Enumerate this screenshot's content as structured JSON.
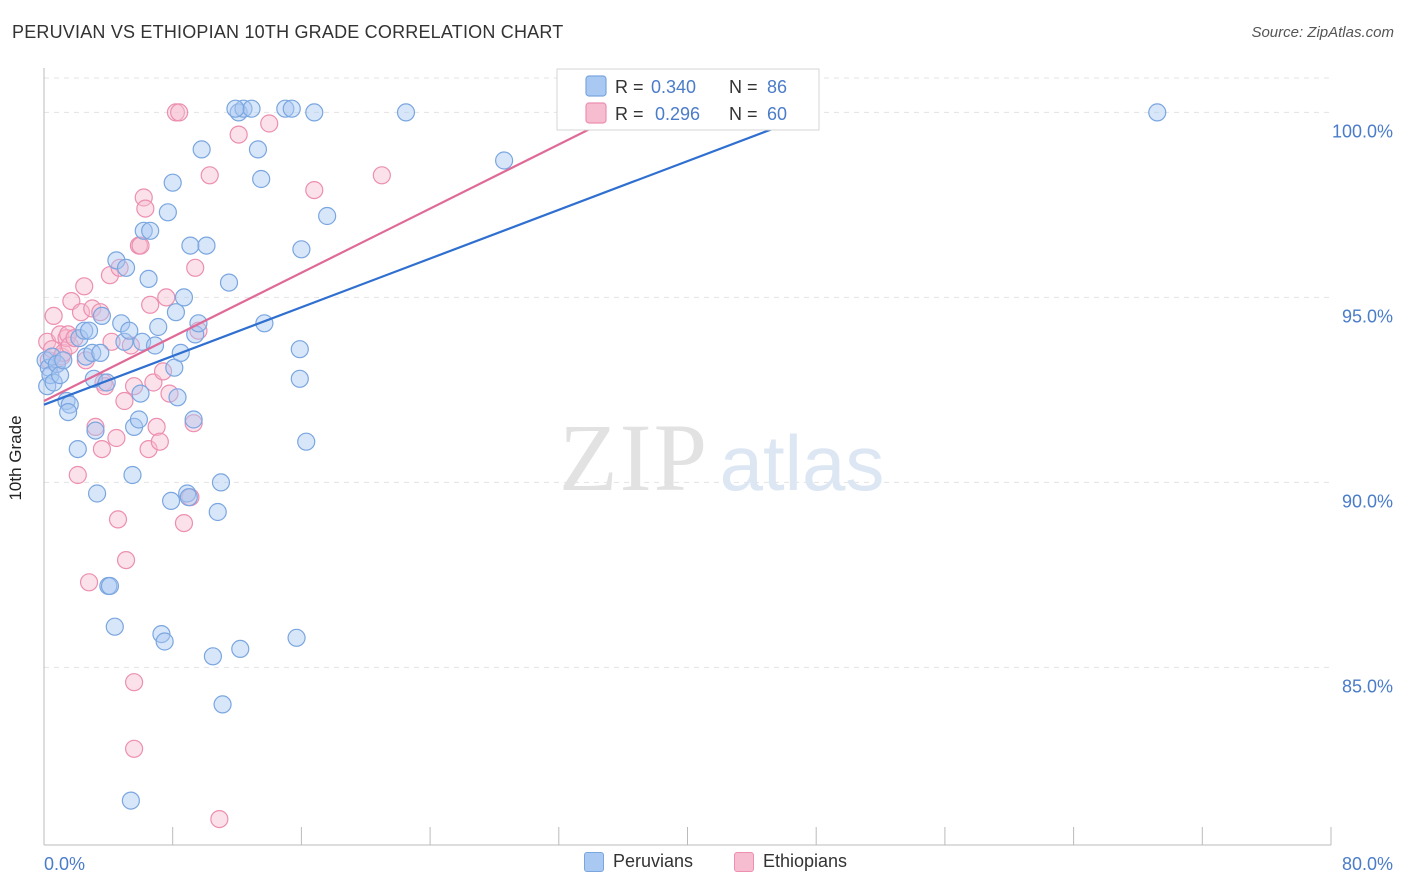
{
  "title": "PERUVIAN VS ETHIOPIAN 10TH GRADE CORRELATION CHART",
  "source": "Source: ZipAtlas.com",
  "watermark": {
    "zip": "ZIP",
    "atlas": "atlas"
  },
  "colors": {
    "peruvian_fill": "#a9c8f2",
    "peruvian_stroke": "#7aa6e0",
    "peruvian_line": "#2f6fd0",
    "ethiopian_fill": "#f6bcd0",
    "ethiopian_stroke": "#ec8fb0",
    "ethiopian_line": "#e06a97",
    "value_blue": "#4a7cc9",
    "grid": "#e3e3e3"
  },
  "legend_top": [
    {
      "r_label": "R =",
      "r_value": "0.340",
      "n_label": "N =",
      "n_value": "86"
    },
    {
      "r_label": "R =",
      "r_value": "0.296",
      "n_label": "N =",
      "n_value": "60"
    }
  ],
  "legend_bottom": [
    "Peruvians",
    "Ethiopians"
  ],
  "chart_data": {
    "type": "scatter",
    "title": "PERUVIAN VS ETHIOPIAN 10TH GRADE CORRELATION CHART",
    "xlabel": "",
    "ylabel": "10th Grade",
    "xlim": [
      0,
      80
    ],
    "ylim": [
      80.2,
      101.2
    ],
    "x_tick_labels": [
      "0.0%",
      "80.0%"
    ],
    "y_ticks": [
      85,
      90,
      95,
      100
    ],
    "y_tick_labels": [
      "85.0%",
      "90.0%",
      "95.0%",
      "100.0%"
    ],
    "grid": true,
    "legend_position": "top-center",
    "series": [
      {
        "name": "Peruvians",
        "r": 0.34,
        "n": 86,
        "trend": {
          "x": [
            0,
            48
          ],
          "y": [
            92.1,
            100.0
          ]
        },
        "points": [
          [
            0.1,
            93.3
          ],
          [
            0.2,
            92.6
          ],
          [
            0.3,
            93.1
          ],
          [
            0.4,
            92.9
          ],
          [
            0.5,
            93.4
          ],
          [
            0.6,
            92.7
          ],
          [
            0.8,
            93.2
          ],
          [
            1.0,
            92.9
          ],
          [
            1.2,
            93.3
          ],
          [
            1.4,
            92.2
          ],
          [
            1.6,
            92.1
          ],
          [
            1.5,
            91.9
          ],
          [
            2.1,
            90.9
          ],
          [
            2.2,
            93.9
          ],
          [
            2.5,
            94.1
          ],
          [
            2.6,
            93.4
          ],
          [
            2.8,
            94.1
          ],
          [
            3.0,
            93.5
          ],
          [
            3.1,
            92.8
          ],
          [
            3.2,
            91.4
          ],
          [
            3.3,
            89.7
          ],
          [
            3.5,
            93.5
          ],
          [
            3.6,
            94.5
          ],
          [
            3.9,
            92.7
          ],
          [
            4.0,
            87.2
          ],
          [
            4.1,
            87.2
          ],
          [
            4.5,
            96.0
          ],
          [
            4.8,
            94.3
          ],
          [
            5.0,
            93.8
          ],
          [
            4.4,
            86.1
          ],
          [
            5.1,
            95.8
          ],
          [
            5.3,
            94.1
          ],
          [
            5.5,
            90.2
          ],
          [
            5.6,
            91.5
          ],
          [
            5.9,
            91.7
          ],
          [
            6.0,
            92.4
          ],
          [
            6.1,
            93.8
          ],
          [
            5.4,
            81.4
          ],
          [
            6.2,
            96.8
          ],
          [
            6.5,
            95.5
          ],
          [
            6.6,
            96.8
          ],
          [
            6.9,
            93.7
          ],
          [
            7.1,
            94.2
          ],
          [
            7.3,
            85.9
          ],
          [
            7.5,
            85.7
          ],
          [
            7.7,
            97.3
          ],
          [
            7.9,
            89.5
          ],
          [
            8.0,
            98.1
          ],
          [
            8.1,
            93.1
          ],
          [
            8.2,
            94.6
          ],
          [
            8.3,
            92.3
          ],
          [
            8.5,
            93.5
          ],
          [
            8.7,
            95.0
          ],
          [
            8.9,
            89.7
          ],
          [
            9.0,
            89.6
          ],
          [
            9.1,
            96.4
          ],
          [
            9.3,
            91.7
          ],
          [
            9.4,
            94.0
          ],
          [
            9.6,
            94.3
          ],
          [
            9.8,
            99.0
          ],
          [
            10.1,
            96.4
          ],
          [
            10.5,
            85.3
          ],
          [
            10.8,
            89.2
          ],
          [
            11.0,
            90.0
          ],
          [
            11.1,
            84.0
          ],
          [
            11.5,
            95.4
          ],
          [
            12.1,
            100.0
          ],
          [
            12.4,
            100.1
          ],
          [
            12.9,
            100.1
          ],
          [
            12.2,
            85.5
          ],
          [
            11.9,
            100.1
          ],
          [
            13.3,
            99.0
          ],
          [
            13.5,
            98.2
          ],
          [
            13.7,
            94.3
          ],
          [
            15.0,
            100.1
          ],
          [
            15.4,
            100.1
          ],
          [
            15.7,
            85.8
          ],
          [
            15.9,
            92.8
          ],
          [
            16.3,
            91.1
          ],
          [
            15.9,
            93.6
          ],
          [
            16.8,
            100.0
          ],
          [
            17.6,
            97.2
          ],
          [
            16.0,
            96.3
          ],
          [
            22.5,
            100.0
          ],
          [
            28.6,
            98.7
          ],
          [
            69.2,
            100.0
          ]
        ]
      },
      {
        "name": "Ethiopians",
        "r": 0.296,
        "n": 60,
        "trend": {
          "x": [
            0,
            36
          ],
          "y": [
            92.2,
            100.0
          ]
        },
        "points": [
          [
            0.2,
            93.8
          ],
          [
            0.3,
            93.3
          ],
          [
            0.5,
            93.6
          ],
          [
            0.6,
            94.5
          ],
          [
            0.8,
            93.2
          ],
          [
            1.0,
            94.0
          ],
          [
            1.1,
            93.4
          ],
          [
            1.2,
            93.5
          ],
          [
            1.4,
            93.9
          ],
          [
            1.5,
            94.0
          ],
          [
            1.6,
            93.7
          ],
          [
            1.7,
            94.9
          ],
          [
            1.9,
            93.9
          ],
          [
            2.1,
            90.2
          ],
          [
            2.3,
            94.6
          ],
          [
            2.5,
            95.3
          ],
          [
            2.6,
            93.3
          ],
          [
            2.8,
            87.3
          ],
          [
            3.0,
            94.7
          ],
          [
            3.2,
            91.5
          ],
          [
            3.5,
            94.6
          ],
          [
            3.6,
            90.9
          ],
          [
            3.7,
            92.7
          ],
          [
            3.8,
            92.6
          ],
          [
            4.1,
            95.6
          ],
          [
            4.2,
            93.8
          ],
          [
            4.5,
            91.2
          ],
          [
            4.6,
            89.0
          ],
          [
            4.7,
            95.8
          ],
          [
            5.0,
            92.2
          ],
          [
            5.1,
            87.9
          ],
          [
            5.4,
            93.7
          ],
          [
            5.6,
            92.6
          ],
          [
            5.6,
            84.6
          ],
          [
            5.6,
            82.8
          ],
          [
            5.9,
            96.4
          ],
          [
            6.0,
            96.4
          ],
          [
            6.2,
            97.7
          ],
          [
            6.3,
            97.4
          ],
          [
            6.5,
            90.9
          ],
          [
            6.6,
            94.8
          ],
          [
            6.8,
            92.7
          ],
          [
            7.0,
            91.5
          ],
          [
            7.2,
            91.1
          ],
          [
            7.4,
            93.0
          ],
          [
            7.6,
            95.0
          ],
          [
            7.8,
            92.4
          ],
          [
            8.2,
            100.0
          ],
          [
            8.4,
            100.0
          ],
          [
            8.7,
            88.9
          ],
          [
            9.1,
            89.6
          ],
          [
            9.3,
            91.6
          ],
          [
            9.4,
            95.8
          ],
          [
            9.6,
            94.1
          ],
          [
            10.3,
            98.3
          ],
          [
            10.9,
            80.9
          ],
          [
            12.1,
            99.4
          ],
          [
            14.0,
            99.7
          ],
          [
            16.8,
            97.9
          ],
          [
            21.0,
            98.3
          ]
        ]
      }
    ]
  }
}
